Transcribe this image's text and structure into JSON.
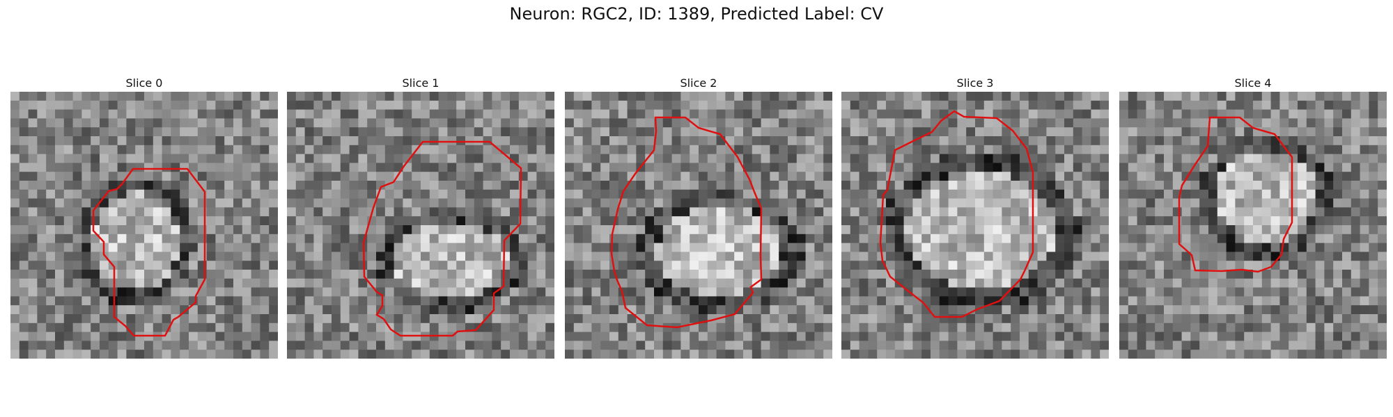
{
  "figure": {
    "title": "Neuron: RGC2, ID: 1389, Predicted Label: CV"
  },
  "panels": [
    {
      "label": "Slice 0"
    },
    {
      "label": "Slice 1"
    },
    {
      "label": "Slice 2"
    },
    {
      "label": "Slice 3"
    },
    {
      "label": "Slice 4"
    }
  ],
  "colors": {
    "outline": "#e01010",
    "background": "#ffffff"
  }
}
